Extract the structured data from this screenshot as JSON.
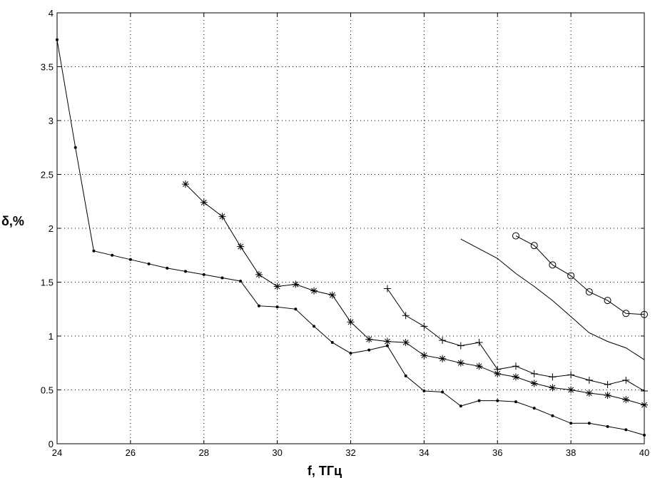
{
  "chart_data": {
    "type": "line",
    "title": "",
    "xlabel": "f, ТГц",
    "ylabel": "δ,%",
    "xlim": [
      24,
      40
    ],
    "ylim": [
      0,
      4
    ],
    "grid": true,
    "xticks": [
      24,
      26,
      28,
      30,
      32,
      34,
      36,
      38,
      40
    ],
    "xtick_labels": [
      "24",
      "26",
      "28",
      "30",
      "32",
      "34",
      "36",
      "38",
      "40"
    ],
    "yticks": [
      0,
      0.5,
      1,
      1.5,
      2,
      2.5,
      3,
      3.5,
      4
    ],
    "ytick_labels": [
      "0",
      "0.5",
      "1",
      "1.5",
      "2",
      "2.5",
      "3",
      "3.5",
      "4"
    ],
    "series": [
      {
        "marker": "dot",
        "x": [
          24,
          24.5,
          25,
          25.5,
          26,
          26.5,
          27,
          27.5,
          28,
          28.5,
          29,
          29.5,
          30,
          30.5,
          31,
          31.5,
          32,
          32.5,
          33,
          33.5,
          34,
          34.5,
          35,
          35.5,
          36,
          36.5,
          37,
          37.5,
          38,
          38.5,
          39,
          39.5,
          40
        ],
        "y": [
          3.75,
          2.75,
          1.79,
          1.75,
          1.71,
          1.67,
          1.63,
          1.6,
          1.57,
          1.54,
          1.51,
          1.28,
          1.27,
          1.25,
          1.09,
          0.94,
          0.84,
          0.87,
          0.91,
          0.63,
          0.49,
          0.48,
          0.35,
          0.4,
          0.4,
          0.39,
          0.33,
          0.26,
          0.19,
          0.19,
          0.16,
          0.13,
          0.08
        ]
      },
      {
        "marker": "star",
        "x": [
          27.5,
          28,
          28.5,
          29,
          29.5,
          30,
          30.5,
          31,
          31.5,
          32,
          32.5,
          33,
          33.5,
          34,
          34.5,
          35,
          35.5,
          36,
          36.5,
          37,
          37.5,
          38,
          38.5,
          39,
          39.5,
          40
        ],
        "y": [
          2.41,
          2.24,
          2.11,
          1.83,
          1.57,
          1.46,
          1.48,
          1.42,
          1.38,
          1.13,
          0.97,
          0.95,
          0.94,
          0.82,
          0.79,
          0.75,
          0.72,
          0.65,
          0.62,
          0.56,
          0.52,
          0.5,
          0.47,
          0.45,
          0.41,
          0.36
        ]
      },
      {
        "marker": "plus",
        "x": [
          33,
          33.5,
          34,
          34.5,
          35,
          35.5,
          36,
          36.5,
          37,
          37.5,
          38,
          38.5,
          39,
          39.5,
          40
        ],
        "y": [
          1.44,
          1.19,
          1.09,
          0.96,
          0.91,
          0.94,
          0.69,
          0.72,
          0.65,
          0.62,
          0.64,
          0.59,
          0.55,
          0.59,
          0.49
        ]
      },
      {
        "marker": "none",
        "x": [
          35,
          35.5,
          36,
          36.5,
          37,
          37.5,
          38,
          38.5,
          39,
          39.5,
          40
        ],
        "y": [
          1.9,
          1.81,
          1.72,
          1.58,
          1.46,
          1.33,
          1.18,
          1.03,
          0.95,
          0.89,
          0.78
        ]
      },
      {
        "marker": "circle",
        "x": [
          36.5,
          37,
          37.5,
          38,
          38.5,
          39,
          39.5,
          40
        ],
        "y": [
          1.93,
          1.84,
          1.66,
          1.56,
          1.41,
          1.33,
          1.21,
          1.2
        ]
      }
    ]
  }
}
